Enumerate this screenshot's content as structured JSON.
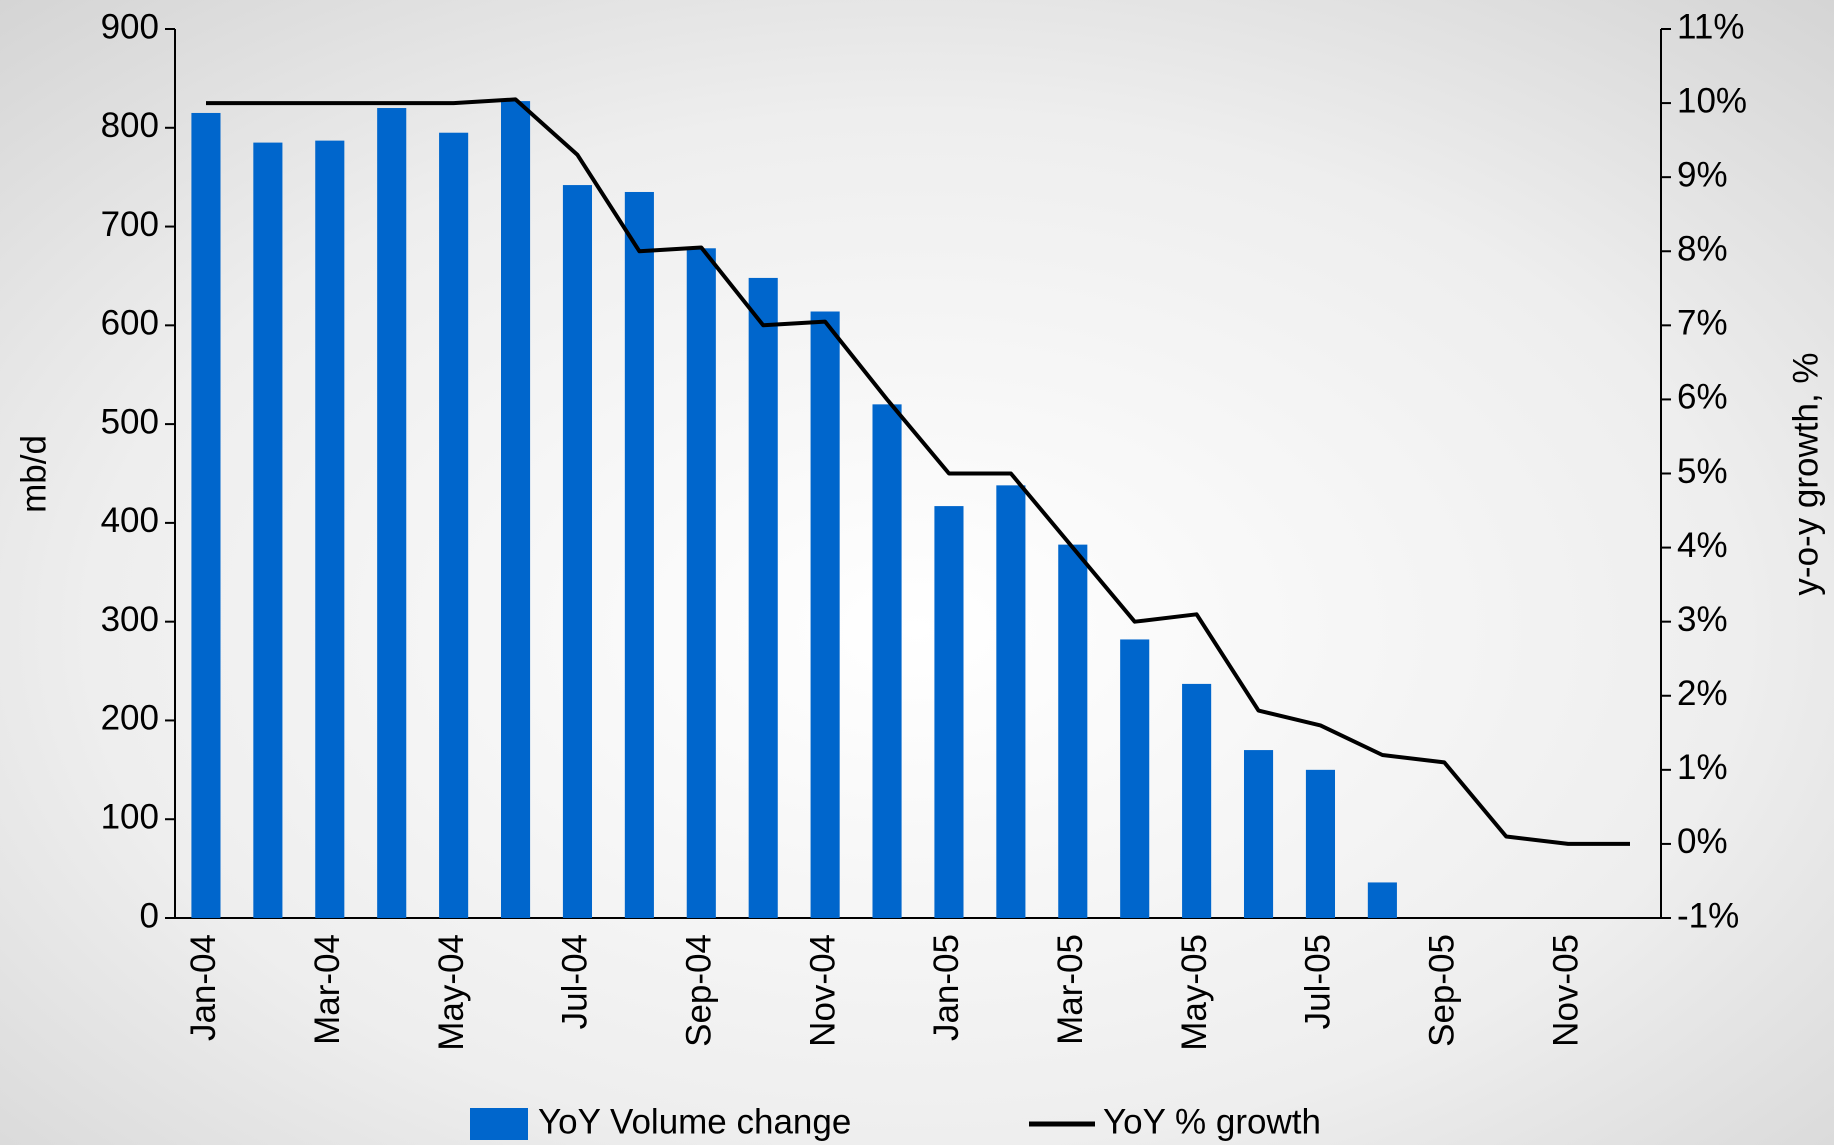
{
  "chart_data": {
    "type": "bar_line",
    "categories": [
      "Jan-04",
      null,
      "Mar-04",
      null,
      "May-04",
      null,
      "Jul-04",
      null,
      "Sep-04",
      null,
      "Nov-04",
      null,
      "Jan-05",
      null,
      "Mar-05",
      null,
      "May-05",
      null,
      "Jul-05",
      null,
      "Sep-05",
      null,
      "Nov-05",
      null
    ],
    "series": [
      {
        "name": "YoY Volume change",
        "color": "#0066cc",
        "type": "bar",
        "values": [
          815,
          785,
          787,
          820,
          795,
          827,
          742,
          735,
          678,
          648,
          614,
          520,
          417,
          438,
          378,
          282,
          237,
          170,
          150,
          36,
          null,
          null,
          null,
          null
        ]
      },
      {
        "name": "YoY % growth",
        "color": "#000000",
        "type": "line",
        "axis": "y2",
        "values": [
          10,
          10,
          10,
          10,
          10,
          10.05,
          9.3,
          8,
          8.05,
          7,
          7.05,
          6,
          5,
          5,
          4,
          3,
          3.1,
          1.8,
          1.6,
          1.2,
          1.1,
          0.1,
          0,
          0
        ]
      }
    ],
    "ylabel": "mb/d",
    "y2label": "y-o-y growth, %",
    "ylim": [
      0,
      900
    ],
    "yticks": [
      0,
      100,
      200,
      300,
      400,
      500,
      600,
      700,
      800,
      900
    ],
    "y2lim": [
      -1,
      11
    ],
    "y2ticks": [
      {
        "value": -1,
        "label": "-1%"
      },
      {
        "value": 0,
        "label": "0%"
      },
      {
        "value": 1,
        "label": "1%"
      },
      {
        "value": 2,
        "label": "2%"
      },
      {
        "value": 3,
        "label": "3%"
      },
      {
        "value": 4,
        "label": "4%"
      },
      {
        "value": 5,
        "label": "5%"
      },
      {
        "value": 6,
        "label": "6%"
      },
      {
        "value": 7,
        "label": "7%"
      },
      {
        "value": 8,
        "label": "8%"
      },
      {
        "value": 9,
        "label": "9%"
      },
      {
        "value": 10,
        "label": "10%"
      },
      {
        "value": 11,
        "label": "11%"
      }
    ],
    "legend": "bottom"
  }
}
